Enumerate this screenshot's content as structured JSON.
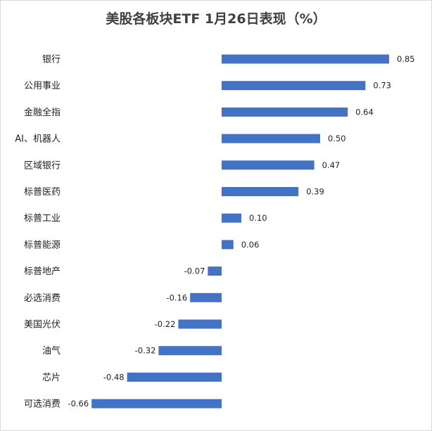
{
  "chart_data": {
    "type": "bar",
    "orientation": "horizontal",
    "title": "美股各板块ETF 1月26日表现（%）",
    "xlabel": "",
    "ylabel": "",
    "xlim": [
      -0.7,
      0.9
    ],
    "grid": false,
    "legend": "none",
    "bar_color": "#4472C4",
    "categories": [
      "银行",
      "公用事业",
      "金融全指",
      "AI、机器人",
      "区域银行",
      "标普医药",
      "标普工业",
      "标普能源",
      "标普地产",
      "必选消费",
      "美国光伏",
      "油气",
      "芯片",
      "可选消费"
    ],
    "values": [
      0.85,
      0.73,
      0.64,
      0.5,
      0.47,
      0.39,
      0.1,
      0.06,
      -0.07,
      -0.16,
      -0.22,
      -0.32,
      -0.48,
      -0.66
    ],
    "value_labels": [
      "0.85",
      "0.73",
      "0.64",
      "0.50",
      "0.47",
      "0.39",
      "0.10",
      "0.06",
      "-0.07",
      "-0.16",
      "-0.22",
      "-0.32",
      "-0.48",
      "-0.66"
    ]
  }
}
